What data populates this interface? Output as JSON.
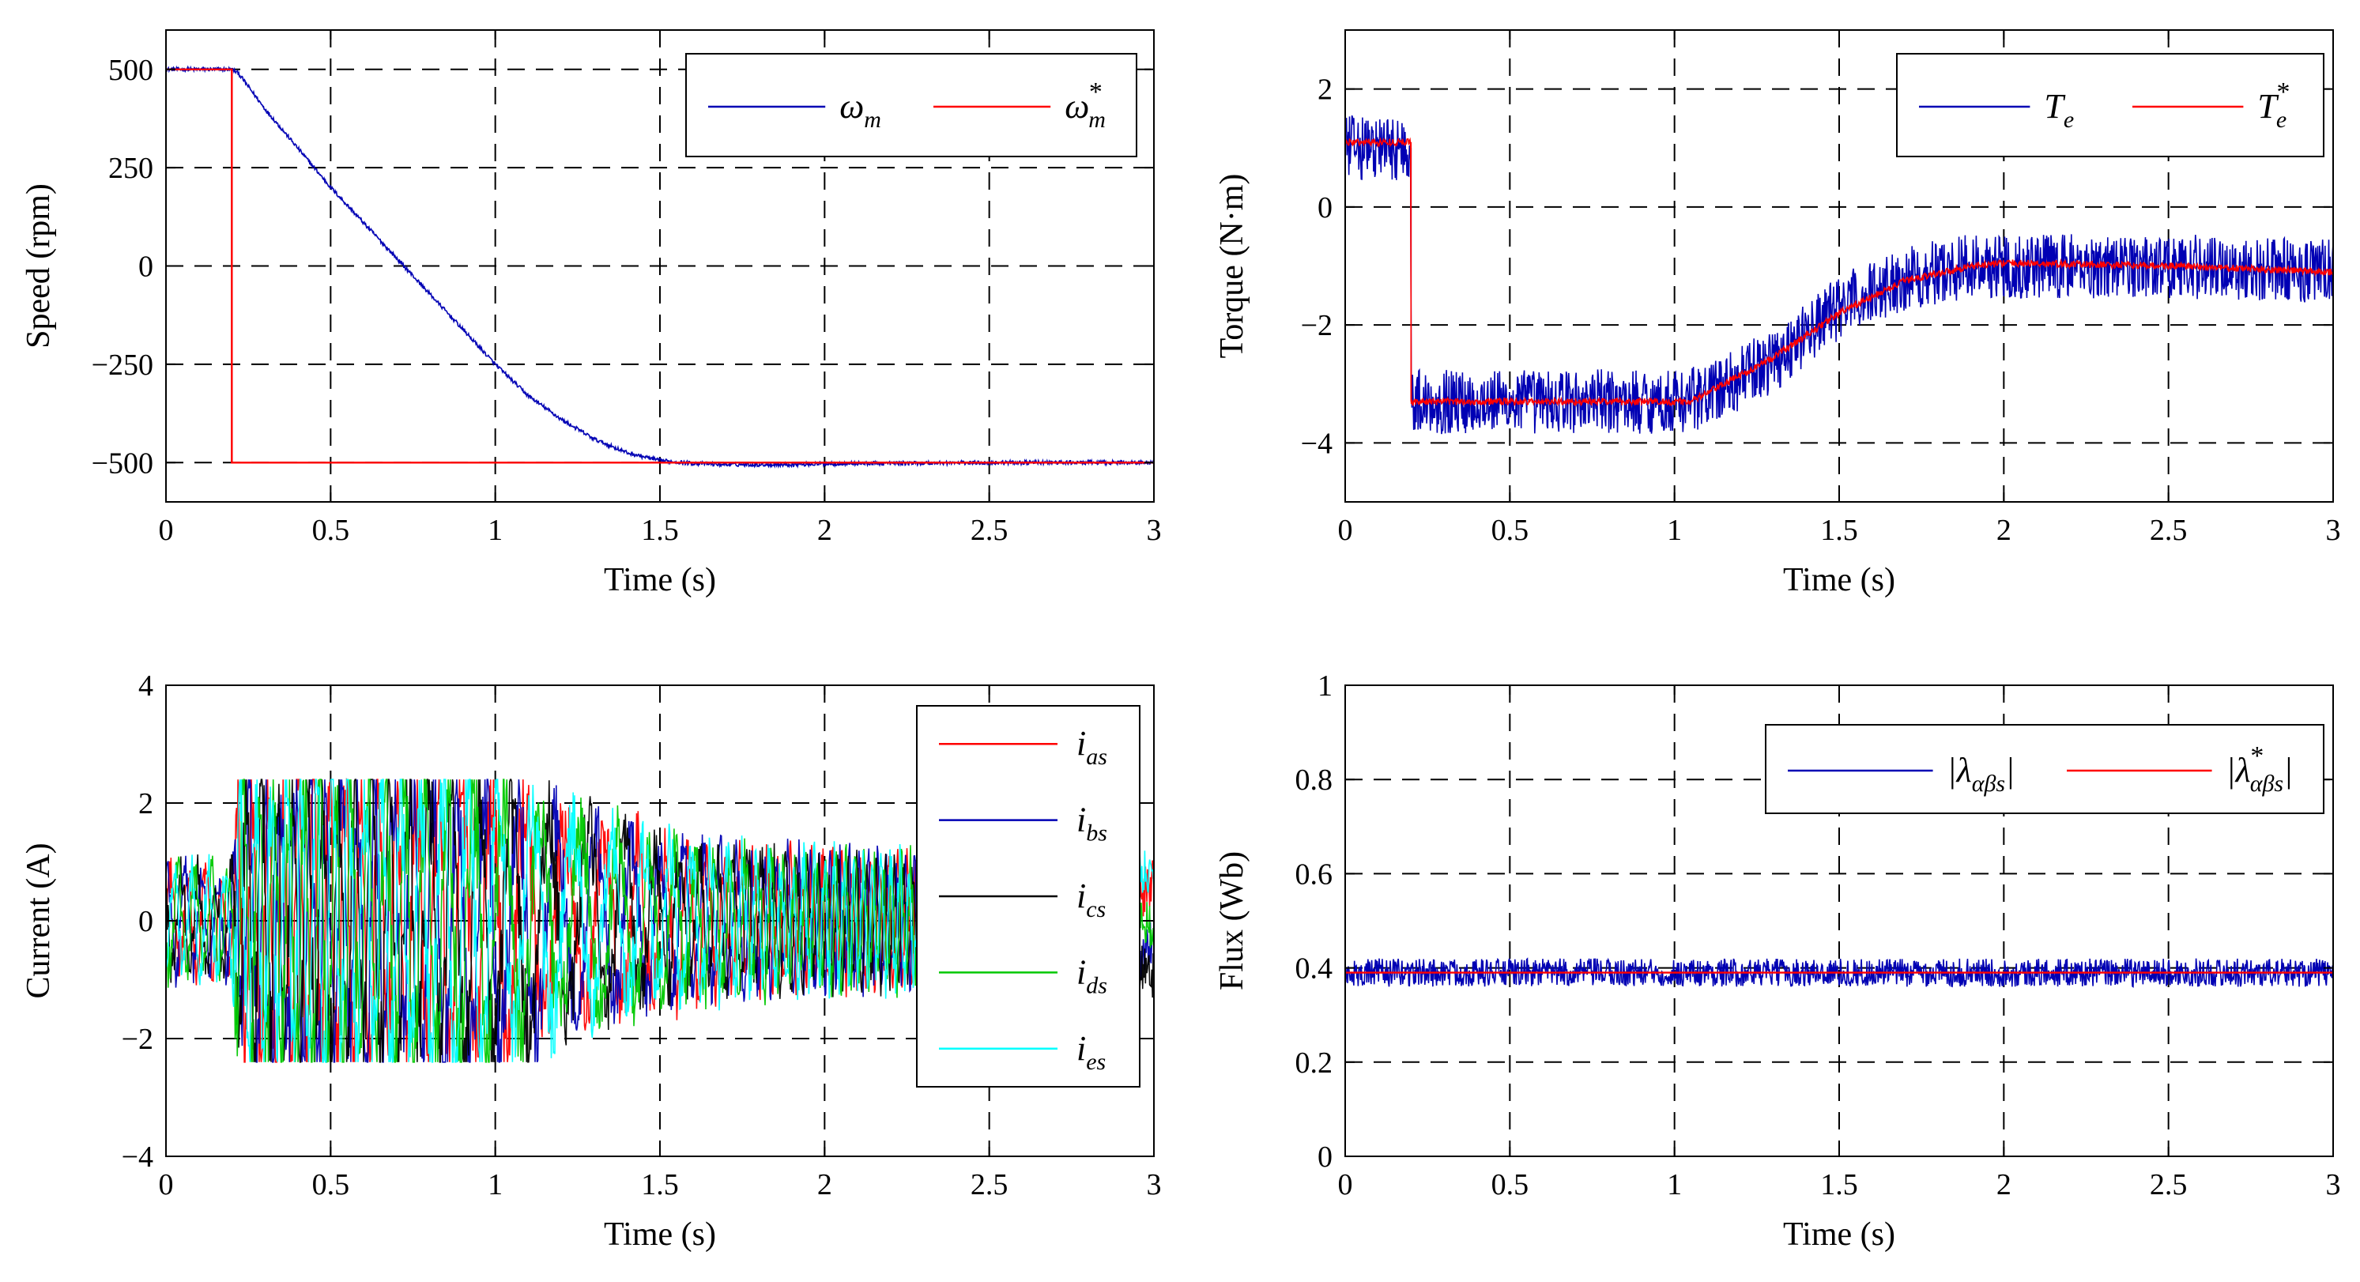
{
  "figure_title": "",
  "colors": {
    "red": "#ff0000",
    "blue": "#0000b4",
    "black": "#000000",
    "green": "#00c800",
    "cyan": "#00ffff"
  },
  "chart_data": [
    {
      "id": "speed",
      "type": "line",
      "title": "",
      "xlabel": "Time (s)",
      "ylabel": "Speed (rpm)",
      "xlim": [
        0,
        3
      ],
      "ylim": [
        -600,
        600
      ],
      "xticks": [
        0,
        0.5,
        1,
        1.5,
        2,
        2.5,
        3
      ],
      "xtick_labels": [
        "0",
        "0.5",
        "1",
        "1.5",
        "2",
        "2.5",
        "3"
      ],
      "yticks": [
        -500,
        -250,
        0,
        250,
        500
      ],
      "ytick_labels": [
        "−500",
        "−250",
        "0",
        "250",
        "500"
      ],
      "grid": true,
      "legend_position": "top-right",
      "legend_layout": "horizontal",
      "series": [
        {
          "name": "ω",
          "sub": "m",
          "sup": "",
          "color": "#0000b4",
          "noise": 5,
          "x": [
            0,
            0.2,
            0.22,
            0.3,
            0.4,
            0.5,
            0.6,
            0.7,
            0.8,
            0.9,
            1.0,
            1.1,
            1.2,
            1.3,
            1.4,
            1.5,
            1.6,
            1.7,
            1.8,
            1.9,
            2.0,
            2.5,
            3.0
          ],
          "y": [
            500,
            500,
            490,
            400,
            300,
            200,
            110,
            20,
            -70,
            -160,
            -250,
            -330,
            -390,
            -440,
            -475,
            -495,
            -502,
            -505,
            -505,
            -505,
            -503,
            -500,
            -500
          ]
        },
        {
          "name": "ω",
          "sub": "m",
          "sup": "*",
          "color": "#ff0000",
          "noise": 0,
          "x": [
            0,
            0.2,
            0.2,
            3.0
          ],
          "y": [
            500,
            500,
            -500,
            -500
          ]
        }
      ]
    },
    {
      "id": "torque",
      "type": "line",
      "title": "",
      "xlabel": "Time (s)",
      "ylabel": "Torque (N·m)",
      "xlim": [
        0,
        3
      ],
      "ylim": [
        -5,
        3
      ],
      "xticks": [
        0,
        0.5,
        1,
        1.5,
        2,
        2.5,
        3
      ],
      "xtick_labels": [
        "0",
        "0.5",
        "1",
        "1.5",
        "2",
        "2.5",
        "3"
      ],
      "yticks": [
        -4,
        -2,
        0,
        2
      ],
      "ytick_labels": [
        "−4",
        "−2",
        "0",
        "2"
      ],
      "grid": true,
      "legend_position": "top-right",
      "legend_layout": "horizontal",
      "series": [
        {
          "name": "T",
          "sub": "e",
          "sup": "",
          "color": "#0000b4",
          "noise": 0.55,
          "x": [
            0,
            0.2,
            0.2,
            1.0,
            1.1,
            1.3,
            1.5,
            1.7,
            1.9,
            2.0,
            2.5,
            3.0
          ],
          "y": [
            1.0,
            1.0,
            -3.3,
            -3.3,
            -3.2,
            -2.6,
            -1.7,
            -1.2,
            -1.0,
            -1.0,
            -1.0,
            -1.1
          ]
        },
        {
          "name": "T",
          "sub": "e",
          "sup": "*",
          "color": "#ff0000",
          "noise": 0.06,
          "x": [
            0,
            0.2,
            0.2,
            1.05,
            1.1,
            1.3,
            1.5,
            1.7,
            1.9,
            2.0,
            2.5,
            3.0
          ],
          "y": [
            1.1,
            1.1,
            -3.3,
            -3.3,
            -3.15,
            -2.55,
            -1.8,
            -1.25,
            -1.0,
            -0.95,
            -1.0,
            -1.1
          ]
        }
      ]
    },
    {
      "id": "current",
      "type": "line",
      "title": "",
      "xlabel": "Time (s)",
      "ylabel": "Current (A)",
      "xlim": [
        0,
        3
      ],
      "ylim": [
        -4,
        4
      ],
      "xticks": [
        0,
        0.5,
        1,
        1.5,
        2,
        2.5,
        3
      ],
      "xtick_labels": [
        "0",
        "0.5",
        "1",
        "1.5",
        "2",
        "2.5",
        "3"
      ],
      "yticks": [
        -4,
        -2,
        0,
        2,
        4
      ],
      "ytick_labels": [
        "−4",
        "−2",
        "0",
        "2",
        "4"
      ],
      "grid": true,
      "legend_position": "top-right",
      "legend_layout": "vertical",
      "amplitude_envelope": {
        "x": [
          0,
          0.2,
          0.22,
          0.3,
          0.5,
          0.7,
          1.0,
          1.2,
          1.5,
          1.8,
          2.0,
          2.3,
          3.0
        ],
        "y": [
          0.8,
          0.8,
          2.1,
          2.2,
          2.3,
          2.2,
          2.1,
          1.6,
          1.2,
          1.0,
          0.95,
          0.9,
          0.9
        ]
      },
      "series": [
        {
          "name": "i",
          "sub": "as",
          "sup": "",
          "color": "#ff0000",
          "phase_deg": 0
        },
        {
          "name": "i",
          "sub": "bs",
          "sup": "",
          "color": "#0000b4",
          "phase_deg": 72
        },
        {
          "name": "i",
          "sub": "cs",
          "sup": "",
          "color": "#000000",
          "phase_deg": 144
        },
        {
          "name": "i",
          "sub": "ds",
          "sup": "",
          "color": "#00c800",
          "phase_deg": 216
        },
        {
          "name": "i",
          "sub": "es",
          "sup": "",
          "color": "#00ffff",
          "phase_deg": 288
        }
      ]
    },
    {
      "id": "flux",
      "type": "line",
      "title": "",
      "xlabel": "Time (s)",
      "ylabel": "Flux (Wb)",
      "xlim": [
        0,
        3
      ],
      "ylim": [
        0,
        1
      ],
      "xticks": [
        0,
        0.5,
        1,
        1.5,
        2,
        2.5,
        3
      ],
      "xtick_labels": [
        "0",
        "0.5",
        "1",
        "1.5",
        "2",
        "2.5",
        "3"
      ],
      "yticks": [
        0,
        0.2,
        0.4,
        0.6,
        0.8,
        1
      ],
      "ytick_labels": [
        "0",
        "0.2",
        "0.4",
        "0.6",
        "0.8",
        "1"
      ],
      "grid": true,
      "legend_position": "top-right",
      "legend_layout": "horizontal",
      "series": [
        {
          "name": "|λ",
          "sub": "αβs",
          "sup": "",
          "suffix": "|",
          "color": "#0000b4",
          "noise": 0.03,
          "x": [
            0,
            3.0
          ],
          "y": [
            0.39,
            0.39
          ]
        },
        {
          "name": "|λ",
          "sub": "αβs",
          "sup": "*",
          "suffix": "|",
          "color": "#ff0000",
          "noise": 0,
          "x": [
            0,
            3.0
          ],
          "y": [
            0.39,
            0.39
          ]
        }
      ]
    }
  ]
}
